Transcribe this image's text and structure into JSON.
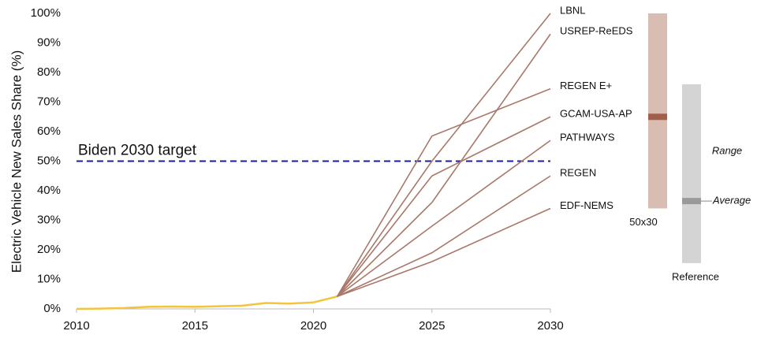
{
  "chart_data": {
    "type": "line",
    "y_label": "Electric Vehicle New Sales Share (%)",
    "xlim": [
      2010,
      2030
    ],
    "xticks": [
      2010,
      2015,
      2020,
      2025,
      2030
    ],
    "ylim": [
      0,
      100
    ],
    "yticks": [
      {
        "value": 0,
        "label": "0%"
      },
      {
        "value": 10,
        "label": "10%"
      },
      {
        "value": 20,
        "label": "20%"
      },
      {
        "value": 30,
        "label": "30%"
      },
      {
        "value": 40,
        "label": "40%"
      },
      {
        "value": 50,
        "label": "50%"
      },
      {
        "value": 60,
        "label": "60%"
      },
      {
        "value": 70,
        "label": "70%"
      },
      {
        "value": 80,
        "label": "80%"
      },
      {
        "value": 90,
        "label": "90%"
      },
      {
        "value": 100,
        "label": "100%"
      }
    ],
    "series": [
      {
        "color": "#f2c53d",
        "x": [
          2010,
          2011,
          2012,
          2013,
          2014,
          2015,
          2016,
          2017,
          2018,
          2019,
          2020,
          2021
        ],
        "values": [
          0,
          0.1,
          0.3,
          0.7,
          0.8,
          0.7,
          0.9,
          1.1,
          2.0,
          1.8,
          2.2,
          4.2
        ]
      },
      {
        "name": "LBNL",
        "color": "#a9786a",
        "x": [
          2021,
          2025,
          2030
        ],
        "values": [
          4.2,
          50,
          100
        ]
      },
      {
        "name": "USREP-ReEDS",
        "color": "#a9786a",
        "x": [
          2021,
          2025,
          2030
        ],
        "values": [
          4.2,
          36,
          93
        ]
      },
      {
        "name": "REGEN E+",
        "color": "#a9786a",
        "x": [
          2021,
          2025,
          2030
        ],
        "values": [
          4.2,
          58.5,
          74.5
        ]
      },
      {
        "name": "GCAM-USA-AP",
        "color": "#a9786a",
        "x": [
          2021,
          2025,
          2030
        ],
        "values": [
          4.2,
          45,
          65
        ]
      },
      {
        "name": "PATHWAYS",
        "color": "#a9786a",
        "x": [
          2021,
          2025,
          2030
        ],
        "values": [
          4.2,
          28,
          57
        ]
      },
      {
        "name": "REGEN",
        "color": "#a9786a",
        "x": [
          2021,
          2025,
          2030
        ],
        "values": [
          4.2,
          19,
          45
        ]
      },
      {
        "name": "EDF-NEMS",
        "color": "#a9786a",
        "x": [
          2021,
          2025,
          2030
        ],
        "values": [
          4.2,
          16,
          34
        ]
      }
    ],
    "target": {
      "label": "Biden 2030 target",
      "value": 50,
      "color": "#1f1f8f"
    },
    "ranges": [
      {
        "name": "50x30",
        "min": 34,
        "max": 100,
        "average": 65,
        "color": "#d9bcb2",
        "average_color": "#a15f4c"
      },
      {
        "name": "Reference",
        "min": 15.5,
        "max": 76,
        "average": 36.5,
        "color": "#d4d4d4",
        "average_color": "#9a9a9a"
      }
    ],
    "range_label": "Range",
    "average_label": "Average"
  }
}
